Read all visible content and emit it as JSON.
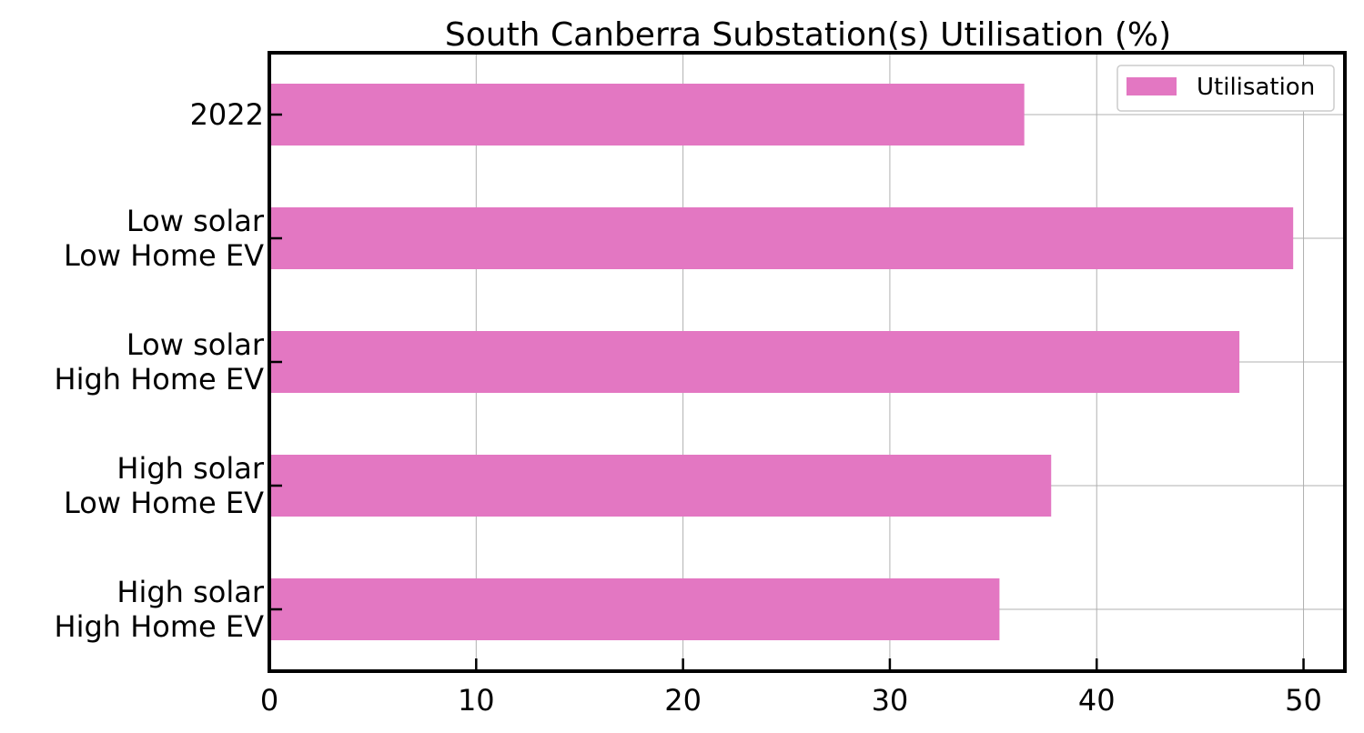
{
  "chart_data": {
    "type": "bar",
    "orientation": "horizontal",
    "title": "South Canberra Substation(s) Utilisation (%)",
    "xlabel": "",
    "ylabel": "",
    "xlim": [
      0,
      52
    ],
    "x_ticks": [
      0,
      10,
      20,
      30,
      40,
      50
    ],
    "categories": [
      [
        "2022"
      ],
      [
        "Low solar",
        "Low Home EV"
      ],
      [
        "Low solar",
        "High Home EV"
      ],
      [
        "High solar",
        "Low Home EV"
      ],
      [
        "High solar",
        "High Home EV"
      ]
    ],
    "series": [
      {
        "name": "Utilisation",
        "color": "#e377c2",
        "values": [
          36.5,
          49.5,
          46.9,
          37.8,
          35.3
        ]
      }
    ],
    "grid": true,
    "legend_position": "top-right"
  }
}
